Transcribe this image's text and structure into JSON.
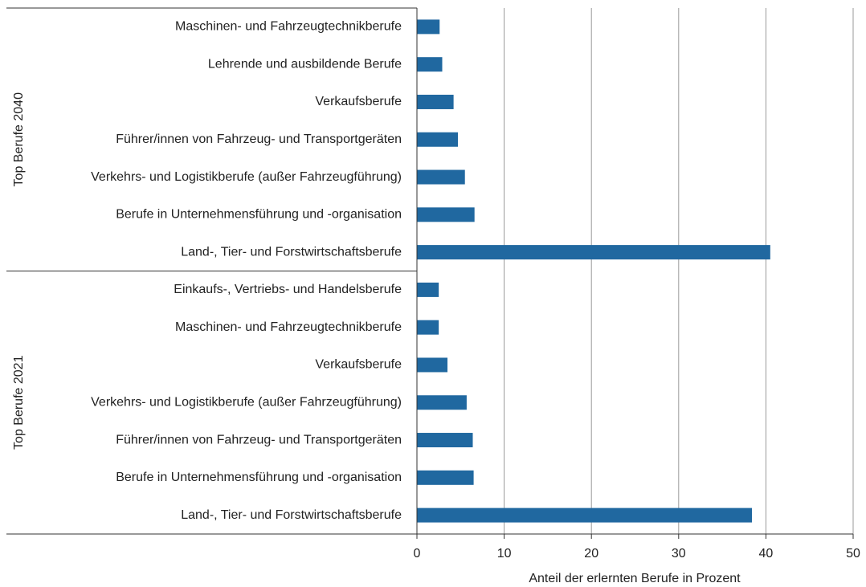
{
  "chart_data": {
    "type": "bar",
    "orientation": "horizontal",
    "color": "#2068a0",
    "xlabel": "Anteil der erlernten Berufe in Prozent",
    "xlim": [
      0,
      50
    ],
    "xticks": [
      0,
      10,
      20,
      30,
      40,
      50
    ],
    "grid": true,
    "groups": [
      {
        "name": "Top Berufe 2040",
        "categories": [
          "Maschinen- und Fahrzeugtechnikberufe",
          "Lehrende und ausbildende Berufe",
          "Verkaufsberufe",
          "Führer/innen von Fahrzeug- und Transportgeräten",
          "Verkehrs- und Logistikberufe (außer Fahrzeugführung)",
          "Berufe in Unternehmensführung und -organisation",
          "Land-, Tier- und Forstwirtschaftsberufe"
        ],
        "values": [
          2.6,
          2.9,
          4.2,
          4.7,
          5.5,
          6.6,
          40.5
        ]
      },
      {
        "name": "Top Berufe 2021",
        "categories": [
          "Einkaufs-, Vertriebs- und Handelsberufe",
          "Maschinen- und Fahrzeugtechnikberufe",
          "Verkaufsberufe",
          "Verkehrs- und Logistikberufe (außer Fahrzeugführung)",
          "Führer/innen von Fahrzeug- und Transportgeräten",
          "Berufe in Unternehmensführung und -organisation",
          "Land-, Tier- und Forstwirtschaftsberufe"
        ],
        "values": [
          2.5,
          2.5,
          3.5,
          5.7,
          6.4,
          6.5,
          38.4
        ]
      }
    ]
  }
}
